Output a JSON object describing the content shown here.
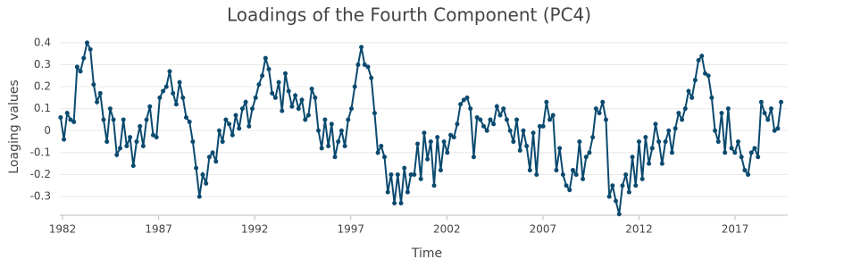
{
  "chart_data": {
    "type": "line",
    "title": "Loadings of the Fourth Component (PC4)",
    "x_label": "Time",
    "y_label": "Loaging values",
    "color": "#0b4a6f",
    "grid": true,
    "x": [
      1981.9,
      1982.072,
      1982.244,
      1982.416,
      1982.588,
      1982.76,
      1982.932,
      1983.104,
      1983.276,
      1983.448,
      1983.62,
      1983.792,
      1983.964,
      1984.136,
      1984.308,
      1984.48,
      1984.652,
      1984.824,
      1984.996,
      1985.168,
      1985.34,
      1985.512,
      1985.684,
      1985.856,
      1986.028,
      1986.2,
      1986.372,
      1986.544,
      1986.716,
      1986.888,
      1987.06,
      1987.232,
      1987.404,
      1987.576,
      1987.748,
      1987.92,
      1988.092,
      1988.264,
      1988.436,
      1988.608,
      1988.78,
      1988.952,
      1989.124,
      1989.296,
      1989.468,
      1989.64,
      1989.812,
      1989.984,
      1990.156,
      1990.328,
      1990.5,
      1990.672,
      1990.844,
      1991.016,
      1991.188,
      1991.36,
      1991.532,
      1991.704,
      1991.876,
      1992.048,
      1992.22,
      1992.392,
      1992.564,
      1992.736,
      1992.908,
      1993.08,
      1993.252,
      1993.424,
      1993.596,
      1993.768,
      1993.94,
      1994.112,
      1994.284,
      1994.456,
      1994.628,
      1994.8,
      1994.972,
      1995.144,
      1995.316,
      1995.488,
      1995.66,
      1995.832,
      1996.004,
      1996.176,
      1996.348,
      1996.52,
      1996.692,
      1996.864,
      1997.036,
      1997.208,
      1997.38,
      1997.552,
      1997.724,
      1997.896,
      1998.068,
      1998.24,
      1998.412,
      1998.584,
      1998.756,
      1998.928,
      1999.1,
      1999.272,
      1999.444,
      1999.616,
      1999.788,
      1999.96,
      2000.132,
      2000.304,
      2000.476,
      2000.648,
      2000.82,
      2000.992,
      2001.164,
      2001.336,
      2001.508,
      2001.68,
      2001.852,
      2002.024,
      2002.196,
      2002.368,
      2002.54,
      2002.712,
      2002.884,
      2003.056,
      2003.228,
      2003.4,
      2003.572,
      2003.744,
      2003.916,
      2004.088,
      2004.26,
      2004.432,
      2004.604,
      2004.776,
      2004.948,
      2005.12,
      2005.292,
      2005.464,
      2005.636,
      2005.808,
      2005.98,
      2006.152,
      2006.324,
      2006.496,
      2006.668,
      2006.84,
      2007.012,
      2007.184,
      2007.356,
      2007.528,
      2007.7,
      2007.872,
      2008.044,
      2008.216,
      2008.388,
      2008.56,
      2008.732,
      2008.904,
      2009.076,
      2009.248,
      2009.42,
      2009.592,
      2009.764,
      2009.936,
      2010.108,
      2010.28,
      2010.452,
      2010.624,
      2010.796,
      2010.968,
      2011.14,
      2011.312,
      2011.484,
      2011.656,
      2011.828,
      2012.0,
      2012.172,
      2012.344,
      2012.516,
      2012.688,
      2012.86,
      2013.032,
      2013.204,
      2013.376,
      2013.548,
      2013.72,
      2013.892,
      2014.064,
      2014.236,
      2014.408,
      2014.58,
      2014.752,
      2014.924,
      2015.096,
      2015.268,
      2015.44,
      2015.612,
      2015.784,
      2015.956,
      2016.128,
      2016.3,
      2016.472,
      2016.644,
      2016.816,
      2016.988,
      2017.16,
      2017.332,
      2017.504,
      2017.676,
      2017.848,
      2018.02,
      2018.192,
      2018.364,
      2018.536,
      2018.708,
      2018.88,
      2019.052,
      2019.224,
      2019.396
    ],
    "values": [
      0.06,
      -0.04,
      0.08,
      0.05,
      0.04,
      0.29,
      0.27,
      0.33,
      0.4,
      0.37,
      0.21,
      0.13,
      0.17,
      0.05,
      -0.05,
      0.1,
      0.05,
      -0.11,
      -0.08,
      0.05,
      -0.07,
      -0.03,
      -0.16,
      -0.05,
      0.02,
      -0.07,
      0.05,
      0.11,
      -0.02,
      -0.03,
      0.15,
      0.18,
      0.2,
      0.27,
      0.17,
      0.12,
      0.22,
      0.15,
      0.06,
      0.04,
      -0.05,
      -0.17,
      -0.3,
      -0.2,
      -0.24,
      -0.12,
      -0.1,
      -0.14,
      0.0,
      -0.05,
      0.05,
      0.03,
      -0.02,
      0.07,
      0.01,
      0.1,
      0.13,
      0.02,
      0.1,
      0.15,
      0.21,
      0.25,
      0.33,
      0.28,
      0.17,
      0.15,
      0.22,
      0.09,
      0.26,
      0.18,
      0.11,
      0.16,
      0.1,
      0.14,
      0.05,
      0.07,
      0.19,
      0.15,
      0.0,
      -0.08,
      0.05,
      -0.07,
      0.03,
      -0.12,
      -0.05,
      0.0,
      -0.07,
      0.05,
      0.1,
      0.2,
      0.3,
      0.38,
      0.3,
      0.29,
      0.24,
      0.08,
      -0.1,
      -0.07,
      -0.12,
      -0.28,
      -0.2,
      -0.33,
      -0.2,
      -0.33,
      -0.17,
      -0.28,
      -0.2,
      -0.2,
      -0.06,
      -0.22,
      -0.01,
      -0.13,
      -0.05,
      -0.25,
      -0.03,
      -0.18,
      -0.05,
      -0.1,
      -0.02,
      -0.03,
      0.03,
      0.12,
      0.14,
      0.15,
      0.1,
      -0.12,
      0.06,
      0.05,
      0.02,
      0.0,
      0.05,
      0.03,
      0.11,
      0.07,
      0.1,
      0.05,
      0.0,
      -0.05,
      0.05,
      -0.09,
      0.0,
      -0.07,
      -0.18,
      -0.01,
      -0.2,
      0.02,
      0.02,
      0.13,
      0.05,
      0.07,
      -0.18,
      -0.08,
      -0.2,
      -0.25,
      -0.27,
      -0.18,
      -0.2,
      -0.05,
      -0.22,
      -0.12,
      -0.1,
      -0.03,
      0.1,
      0.08,
      0.13,
      0.05,
      -0.3,
      -0.25,
      -0.32,
      -0.38,
      -0.25,
      -0.2,
      -0.28,
      -0.12,
      -0.25,
      -0.05,
      -0.22,
      -0.03,
      -0.15,
      -0.08,
      0.03,
      -0.05,
      -0.15,
      -0.05,
      0.0,
      -0.1,
      0.01,
      0.08,
      0.05,
      0.1,
      0.18,
      0.15,
      0.23,
      0.32,
      0.34,
      0.26,
      0.25,
      0.15,
      0.0,
      -0.05,
      0.08,
      -0.1,
      0.1,
      -0.08,
      -0.1,
      -0.05,
      -0.12,
      -0.18,
      -0.2,
      -0.1,
      -0.08,
      -0.12,
      0.13,
      0.08,
      0.05,
      0.1,
      0.0,
      0.01,
      0.13
    ],
    "xlim": [
      1981.86,
      2019.74
    ],
    "xticks": [
      1982,
      1987,
      1992,
      1997,
      2002,
      2007,
      2012,
      2017
    ],
    "ylim": [
      -0.385,
      0.44
    ],
    "yticks": [
      -0.3,
      -0.2,
      -0.1,
      0,
      0.1,
      0.2,
      0.3,
      0.4
    ]
  }
}
